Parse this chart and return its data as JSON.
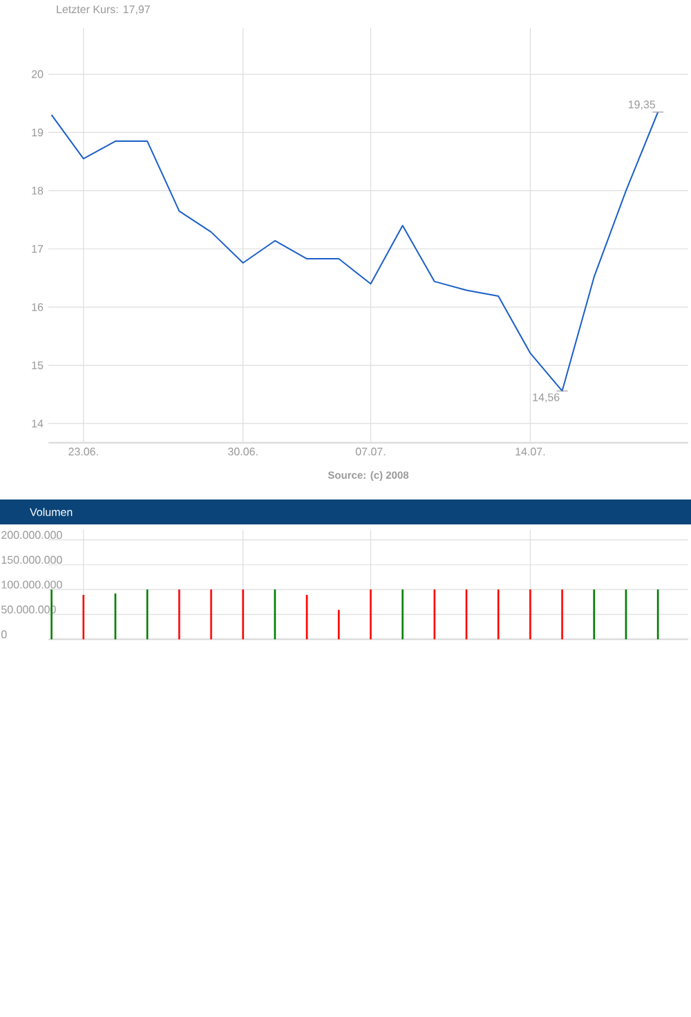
{
  "chart_data": [
    {
      "type": "line",
      "title": "Letzter Kurs: 17,97",
      "categories": [
        null,
        "23.06.",
        null,
        null,
        null,
        null,
        "30.06.",
        null,
        null,
        null,
        "07.07.",
        null,
        null,
        null,
        null,
        "14.07.",
        null,
        null,
        null,
        null
      ],
      "series": [
        {
          "color": "#1a5fc8",
          "values": [
            19.3,
            18.55,
            18.85,
            18.85,
            17.65,
            17.29,
            16.76,
            17.14,
            16.83,
            16.83,
            16.4,
            17.4,
            16.44,
            16.29,
            16.19,
            15.21,
            14.56,
            16.52,
            18.0,
            19.35
          ]
        }
      ],
      "ylim": [
        13.67,
        20.8
      ],
      "yticks": [
        14,
        15,
        16,
        17,
        18,
        19,
        20
      ],
      "grid": true,
      "annotations": [
        "19,35",
        "14,56",
        "Source: (c) 2008"
      ]
    },
    {
      "type": "bar",
      "title": "Volumen",
      "categories": [
        null,
        "23.06.",
        null,
        null,
        null,
        null,
        "30.06.",
        null,
        null,
        null,
        "07.07.",
        null,
        null,
        null,
        null,
        "14.07.",
        null,
        null,
        null,
        null
      ],
      "values": [
        100000000,
        89000000,
        92000000,
        100000000,
        100000000,
        100000000,
        100000000,
        100000000,
        89000000,
        59000000,
        100000000,
        100000000,
        100000000,
        100000000,
        100000000,
        100000000,
        100000000,
        100000000,
        100000000,
        100000000
      ],
      "colors": [
        "#008000",
        "#ff0000",
        "#008000",
        "#008000",
        "#ff0000",
        "#ff0000",
        "#ff0000",
        "#008000",
        "#ff0000",
        "#ff0000",
        "#ff0000",
        "#008000",
        "#ff0000",
        "#ff0000",
        "#ff0000",
        "#ff0000",
        "#ff0000",
        "#008000",
        "#008000",
        "#008000"
      ],
      "ylim": [
        0,
        220000000
      ],
      "yticks": [
        0,
        {
          "value": 50000000,
          "label": "50.000.000"
        },
        {
          "value": 100000000,
          "label": "100.000.000"
        },
        {
          "value": 150000000,
          "label": "150.000.000"
        },
        {
          "value": 200000000,
          "label": "200.000.000"
        }
      ],
      "tick_labels": "y",
      "grid": true
    }
  ]
}
